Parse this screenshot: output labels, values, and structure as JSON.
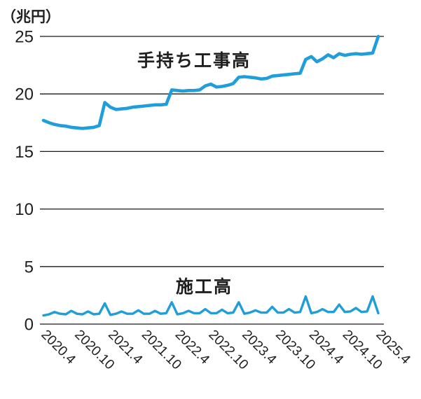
{
  "colors": {
    "line": "#1f9ed9",
    "grid": "#1a1a1a",
    "text": "#1f1f1f",
    "background": "#ffffff"
  },
  "chart_data": {
    "type": "line",
    "title": "",
    "unit_label": "（兆円）",
    "ylabel": "",
    "xlabel": "",
    "ylim": [
      0,
      25
    ],
    "y_ticks": [
      0,
      5,
      10,
      15,
      20,
      25
    ],
    "grid": "horizontal",
    "legend": "inline-labels",
    "x_start": "2020.4",
    "x_end": "2025.4",
    "x_frequency": "monthly",
    "x_tick_labels": [
      "2020.4",
      "2020.10",
      "2021.4",
      "2021.10",
      "2022.4",
      "2022.10",
      "2023.4",
      "2023.10",
      "2024.4",
      "2024.10",
      "2025.4"
    ],
    "x_tick_month_interval": 6,
    "series": [
      {
        "name": "手持ち工事高",
        "values": [
          17.7,
          17.5,
          17.35,
          17.25,
          17.2,
          17.1,
          17.05,
          17.0,
          17.05,
          17.1,
          17.25,
          19.25,
          18.85,
          18.65,
          18.7,
          18.75,
          18.85,
          18.9,
          18.95,
          19.0,
          19.05,
          19.05,
          19.1,
          20.35,
          20.3,
          20.25,
          20.3,
          20.3,
          20.35,
          20.7,
          20.85,
          20.6,
          20.65,
          20.75,
          20.9,
          21.45,
          21.5,
          21.45,
          21.4,
          21.3,
          21.35,
          21.55,
          21.6,
          21.65,
          21.7,
          21.75,
          21.8,
          23.0,
          23.25,
          22.8,
          23.05,
          23.4,
          23.15,
          23.5,
          23.35,
          23.45,
          23.5,
          23.45,
          23.5,
          23.55,
          25.0
        ]
      },
      {
        "name": "施工高",
        "values": [
          0.75,
          0.85,
          1.05,
          0.9,
          0.85,
          1.15,
          0.9,
          0.85,
          1.1,
          0.85,
          0.9,
          1.8,
          0.8,
          0.9,
          1.1,
          0.9,
          0.9,
          1.2,
          0.9,
          0.9,
          1.15,
          0.9,
          0.95,
          1.9,
          0.85,
          0.95,
          1.15,
          0.95,
          0.95,
          1.3,
          0.95,
          0.95,
          1.25,
          0.95,
          1.0,
          1.9,
          0.9,
          1.0,
          1.2,
          1.0,
          1.0,
          1.5,
          1.0,
          1.0,
          1.3,
          1.0,
          1.05,
          2.4,
          0.95,
          1.05,
          1.3,
          1.05,
          1.05,
          1.7,
          1.05,
          1.1,
          1.4,
          1.05,
          1.1,
          2.4,
          0.95
        ]
      }
    ]
  }
}
